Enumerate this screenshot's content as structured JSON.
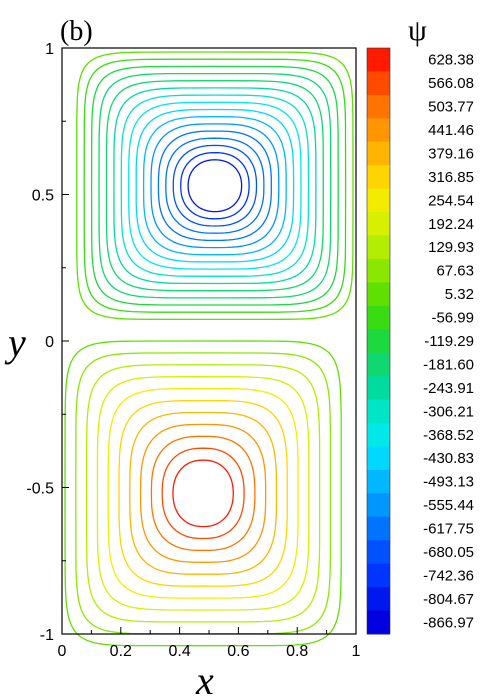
{
  "chart_data": {
    "type": "contour",
    "panel_label": "(b)",
    "xlabel": "x",
    "ylabel": "y",
    "xlim": [
      0,
      1
    ],
    "ylim": [
      -1,
      1
    ],
    "x_ticks": [
      "0",
      "0.2",
      "0.4",
      "0.6",
      "0.8",
      "1"
    ],
    "y_ticks": [
      "1",
      "0.5",
      "0",
      "-0.5",
      "-1"
    ],
    "legend": {
      "title": "ψ",
      "placement": "right",
      "levels": [
        "628.38",
        "566.08",
        "503.77",
        "441.46",
        "379.16",
        "316.85",
        "254.54",
        "192.24",
        "129.93",
        "67.63",
        "5.32",
        "-56.99",
        "-119.29",
        "-181.60",
        "-243.91",
        "-306.21",
        "-368.52",
        "-430.83",
        "-493.13",
        "-555.44",
        "-617.75",
        "-680.05",
        "-742.36",
        "-804.67",
        "-866.97"
      ],
      "colors": [
        "#ff1a00",
        "#ff4a00",
        "#ff7300",
        "#ff9500",
        "#ffb500",
        "#ffd400",
        "#f4ec00",
        "#d6f000",
        "#b3ed00",
        "#8ae800",
        "#5fe000",
        "#38dc10",
        "#1ed840",
        "#10d870",
        "#00dca0",
        "#00e4c8",
        "#00e8e8",
        "#00d8ff",
        "#00b8ff",
        "#0096ff",
        "#0074ff",
        "#0052ff",
        "#0034ff",
        "#0018f0",
        "#0000e0"
      ]
    },
    "vortices": [
      {
        "name": "upper",
        "center": [
          0.52,
          0.53
        ],
        "levels": 16
      },
      {
        "name": "lower",
        "center": [
          0.48,
          -0.52
        ],
        "levels": 11
      }
    ]
  }
}
